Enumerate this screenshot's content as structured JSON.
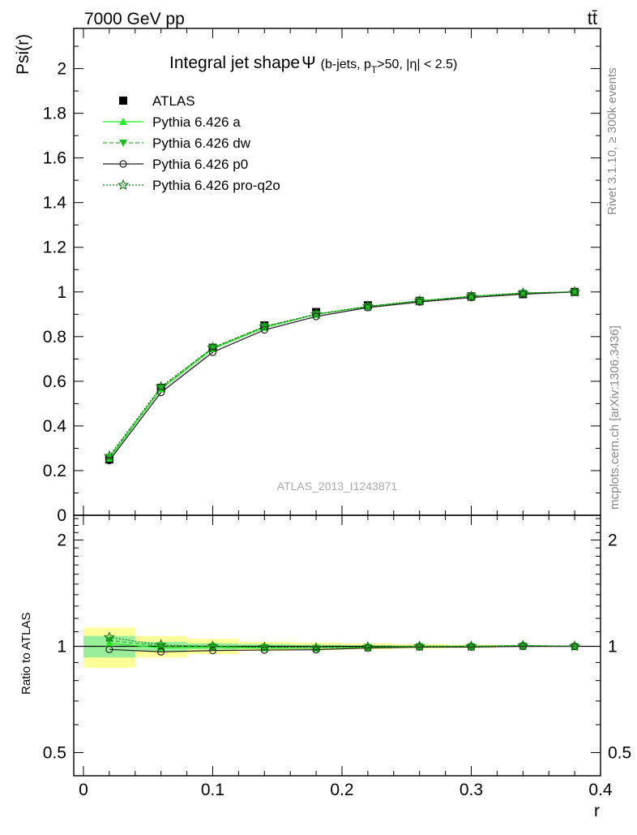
{
  "header": {
    "energy_label": "7000 GeV pp",
    "process_label": "tt̄"
  },
  "side_labels": {
    "rivet": "Rivet 3.1.10, ≥ 300k events",
    "mcplots": "mcplots.cern.ch [arXiv:1306.3436]"
  },
  "watermark": "ATLAS_2013_I1243871",
  "chart_data": {
    "type": "line",
    "title_main": "Integral jet shape",
    "title_symbol": "Ψ",
    "title_cond_1": "(b-jets, p",
    "title_cond_sub": "T",
    "title_cond_2": ">50, |η| < 2.5)",
    "xlabel": "r",
    "ylabel": "Psi(r)",
    "ratio_ylabel": "Ratio to ATLAS",
    "xlim": [
      -0.0075,
      0.4
    ],
    "ylim": [
      0,
      2.18
    ],
    "ratio_ylim": [
      0.43,
      2.35
    ],
    "x_ticks": [
      0,
      0.1,
      0.2,
      0.3,
      0.4
    ],
    "x_tick_labels": [
      "0",
      "0.1",
      "0.2",
      "0.3",
      "0.4"
    ],
    "y_ticks": [
      0,
      0.2,
      0.4,
      0.6,
      0.8,
      1,
      1.2,
      1.4,
      1.6,
      1.8,
      2
    ],
    "y_tick_labels": [
      "0",
      "0.2",
      "0.4",
      "0.6",
      "0.8",
      "1",
      "1.2",
      "1.4",
      "1.6",
      "1.8",
      "2"
    ],
    "ratio_y_ticks": [
      0.5,
      1,
      2
    ],
    "ratio_y_tick_labels": [
      "0.5",
      "1",
      "2"
    ],
    "x": [
      0.02,
      0.06,
      0.1,
      0.14,
      0.18,
      0.22,
      0.26,
      0.3,
      0.34,
      0.38
    ],
    "bin_edges": [
      0,
      0.04,
      0.08,
      0.12,
      0.16,
      0.2,
      0.24,
      0.28,
      0.32,
      0.36,
      0.4
    ],
    "data": {
      "name": "ATLAS",
      "values": [
        0.25,
        0.57,
        0.75,
        0.85,
        0.91,
        0.94,
        0.96,
        0.98,
        0.99,
        1.0
      ],
      "band_inner": [
        0.07,
        0.03,
        0.02,
        0.015,
        0.01,
        0.007,
        0.005,
        0.004,
        0.003,
        0.001
      ],
      "band_outer": [
        0.13,
        0.07,
        0.05,
        0.03,
        0.025,
        0.02,
        0.015,
        0.01,
        0.005,
        0.002
      ]
    },
    "series": [
      {
        "name": "Pythia 6.426 a",
        "color": "#22ee22",
        "dash": "solid",
        "marker": "triangle-up",
        "values": [
          0.255,
          0.565,
          0.745,
          0.84,
          0.9,
          0.935,
          0.96,
          0.98,
          0.995,
          1.0
        ]
      },
      {
        "name": "Pythia 6.426 dw",
        "color": "#22bb22",
        "dash": "dashed",
        "marker": "triangle-down",
        "values": [
          0.26,
          0.57,
          0.75,
          0.845,
          0.9,
          0.935,
          0.96,
          0.98,
          0.995,
          1.0
        ]
      },
      {
        "name": "Pythia 6.426 p0",
        "color": "#222222",
        "dash": "solid",
        "marker": "circle-open",
        "values": [
          0.245,
          0.55,
          0.73,
          0.83,
          0.89,
          0.93,
          0.955,
          0.975,
          0.99,
          1.0
        ]
      },
      {
        "name": "Pythia 6.426 pro-q2o",
        "color": "#117711",
        "dash": "dotted",
        "marker": "star-open",
        "values": [
          0.265,
          0.575,
          0.75,
          0.845,
          0.9,
          0.935,
          0.96,
          0.98,
          0.995,
          1.0
        ]
      }
    ],
    "ratios": [
      [
        1.02,
        0.99,
        0.993,
        0.988,
        0.989,
        0.995,
        1.0,
        1.0,
        1.005,
        1.0
      ],
      [
        1.04,
        1.0,
        1.0,
        0.994,
        0.989,
        0.995,
        1.0,
        1.0,
        1.005,
        1.0
      ],
      [
        0.98,
        0.965,
        0.973,
        0.976,
        0.978,
        0.989,
        0.995,
        0.995,
        1.0,
        1.0
      ],
      [
        1.06,
        1.009,
        1.0,
        0.994,
        0.989,
        0.995,
        1.0,
        1.0,
        1.005,
        1.0
      ]
    ],
    "legend_position": "top-left"
  }
}
